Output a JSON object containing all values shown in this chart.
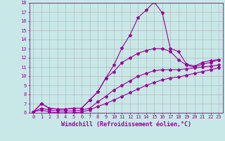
{
  "title": "",
  "xlabel": "Windchill (Refroidissement éolien,°C)",
  "ylabel": "",
  "xlim": [
    -0.5,
    23.5
  ],
  "ylim": [
    6,
    18
  ],
  "xticks": [
    0,
    1,
    2,
    3,
    4,
    5,
    6,
    7,
    8,
    9,
    10,
    11,
    12,
    13,
    14,
    15,
    16,
    17,
    18,
    19,
    20,
    21,
    22,
    23
  ],
  "yticks": [
    6,
    7,
    8,
    9,
    10,
    11,
    12,
    13,
    14,
    15,
    16,
    17,
    18
  ],
  "bg_color": "#c8e8e8",
  "line_color": "#990099",
  "grid_color": "#b0b0b0",
  "line1_x": [
    0,
    1,
    2,
    3,
    4,
    5,
    6,
    7,
    8,
    9,
    10,
    11,
    12,
    13,
    14,
    15,
    16,
    17,
    18,
    19,
    20,
    21,
    22,
    23
  ],
  "line1_y": [
    6.1,
    7.0,
    6.5,
    6.4,
    6.4,
    6.5,
    6.5,
    7.4,
    8.3,
    9.8,
    11.2,
    13.1,
    14.5,
    16.4,
    17.2,
    18.1,
    16.9,
    13.0,
    12.7,
    11.3,
    11.1,
    11.5,
    11.7,
    11.8
  ],
  "line2_x": [
    0,
    1,
    2,
    3,
    4,
    5,
    6,
    7,
    8,
    9,
    10,
    11,
    12,
    13,
    14,
    15,
    16,
    17,
    18,
    19,
    20,
    21,
    22,
    23
  ],
  "line2_y": [
    6.1,
    7.0,
    6.5,
    6.4,
    6.4,
    6.5,
    6.5,
    7.4,
    8.3,
    9.8,
    10.5,
    11.5,
    12.0,
    12.5,
    12.8,
    13.0,
    13.0,
    12.7,
    11.8,
    11.2,
    11.0,
    11.3,
    11.5,
    11.8
  ],
  "line3_x": [
    0,
    1,
    2,
    3,
    4,
    5,
    6,
    7,
    8,
    9,
    10,
    11,
    12,
    13,
    14,
    15,
    16,
    17,
    18,
    19,
    20,
    21,
    22,
    23
  ],
  "line3_y": [
    6.1,
    6.5,
    6.3,
    6.2,
    6.2,
    6.2,
    6.3,
    6.5,
    7.2,
    7.8,
    8.5,
    9.0,
    9.5,
    10.0,
    10.3,
    10.6,
    10.7,
    10.7,
    10.7,
    10.8,
    10.9,
    11.0,
    11.1,
    11.2
  ],
  "line4_x": [
    0,
    1,
    2,
    3,
    4,
    5,
    6,
    7,
    8,
    9,
    10,
    11,
    12,
    13,
    14,
    15,
    16,
    17,
    18,
    19,
    20,
    21,
    22,
    23
  ],
  "line4_y": [
    6.1,
    6.3,
    6.1,
    6.0,
    6.0,
    6.0,
    6.1,
    6.3,
    6.7,
    7.0,
    7.4,
    7.8,
    8.2,
    8.6,
    9.0,
    9.3,
    9.6,
    9.8,
    9.9,
    10.1,
    10.3,
    10.5,
    10.7,
    10.9
  ],
  "marker": "*",
  "markersize": 3,
  "linewidth": 0.8,
  "tick_fontsize": 5,
  "label_fontsize": 6
}
